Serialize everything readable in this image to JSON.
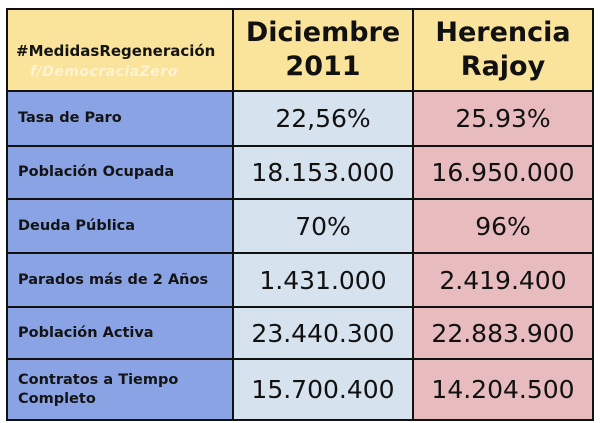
{
  "header": {
    "hashtag": "#MedidasRegeneración",
    "watermark": "f/DemocraciaZero",
    "col_2011_line1": "Diciembre",
    "col_2011_line2": "2011",
    "col_rajoy_line1": "Herencia",
    "col_rajoy_line2": "Rajoy"
  },
  "rows": [
    {
      "label": "Tasa de Paro",
      "dic2011": "22,56%",
      "rajoy": "25.93%"
    },
    {
      "label": "Población Ocupada",
      "dic2011": "18.153.000",
      "rajoy": "16.950.000"
    },
    {
      "label": "Deuda Pública",
      "dic2011": "70%",
      "rajoy": "96%"
    },
    {
      "label": "Parados más de 2 Años",
      "dic2011": "1.431.000",
      "rajoy": "2.419.400"
    },
    {
      "label": "Población Activa",
      "dic2011": "23.440.300",
      "rajoy": "22.883.900"
    },
    {
      "label": "Contratos a Tiempo Completo",
      "dic2011": "15.700.400",
      "rajoy": "14.204.500"
    }
  ],
  "colors": {
    "header_bg": "#fae49b",
    "label_bg": "#8aa3e4",
    "col_2011_bg": "#d6e2ee",
    "col_rajoy_bg": "#e8bcbe",
    "border": "#111111"
  }
}
